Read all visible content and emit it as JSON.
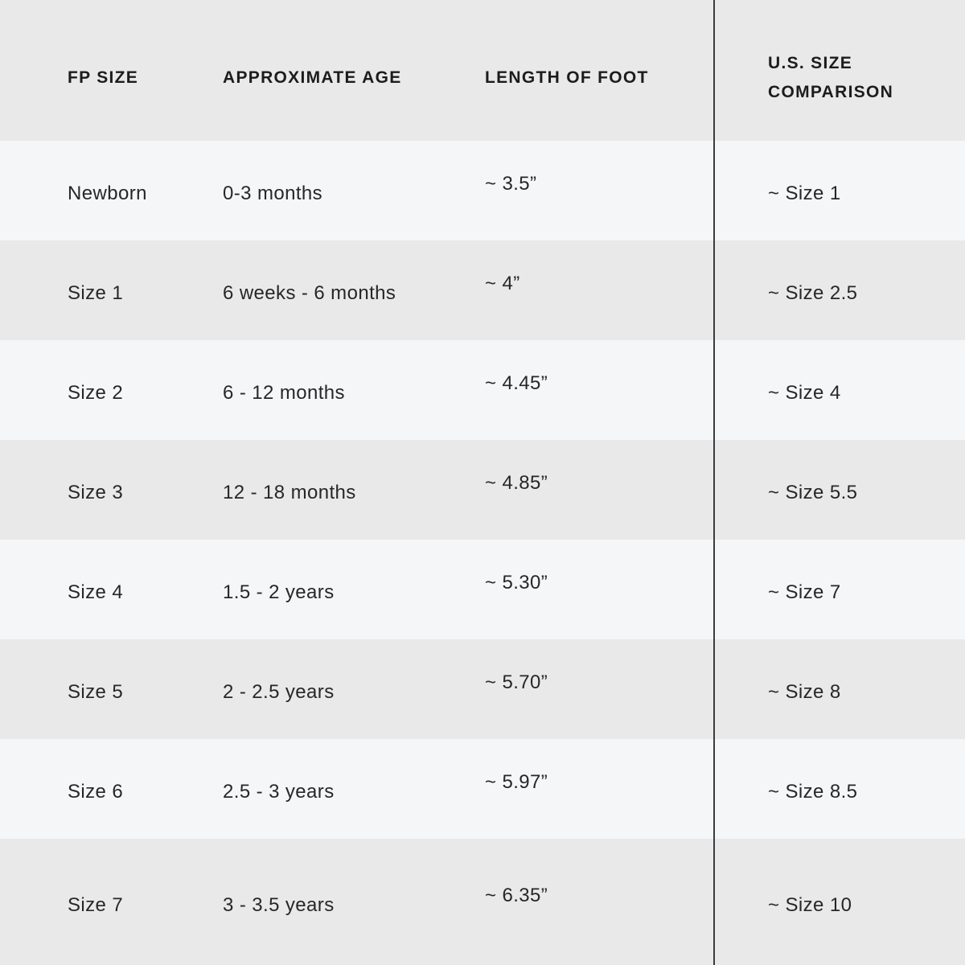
{
  "chart_data": {
    "type": "table",
    "columns": [
      "FP SIZE",
      "APPROXIMATE AGE",
      "LENGTH OF FOOT",
      "U.S. SIZE COMPARISON"
    ],
    "rows": [
      [
        "Newborn",
        "0-3 months",
        "~ 3.5”",
        "~ Size 1"
      ],
      [
        "Size 1",
        "6 weeks - 6 months",
        "~ 4”",
        "~ Size 2.5"
      ],
      [
        "Size 2",
        "6 - 12 months",
        "~ 4.45”",
        "~ Size 4"
      ],
      [
        "Size 3",
        "12 - 18 months",
        "~ 4.85”",
        "~ Size 5.5"
      ],
      [
        "Size 4",
        "1.5 - 2 years",
        "~ 5.30”",
        "~ Size 7"
      ],
      [
        "Size 5",
        "2 - 2.5 years",
        "~ 5.70”",
        "~ Size 8"
      ],
      [
        "Size 6",
        "2.5 - 3 years",
        "~ 5.97”",
        "~ Size 8.5"
      ],
      [
        "Size 7",
        "3 - 3.5 years",
        "~ 6.35”",
        "~ Size 10"
      ]
    ],
    "layout": {
      "striped": true,
      "stripe_color_dark": "#e9e9e9",
      "stripe_color_light": "#f5f6f8",
      "divider_before_column_index": 3,
      "divider_color": "#3c3c3c",
      "text_color": "#272727",
      "header_text_color": "#1c1c1c",
      "grid": false
    }
  }
}
